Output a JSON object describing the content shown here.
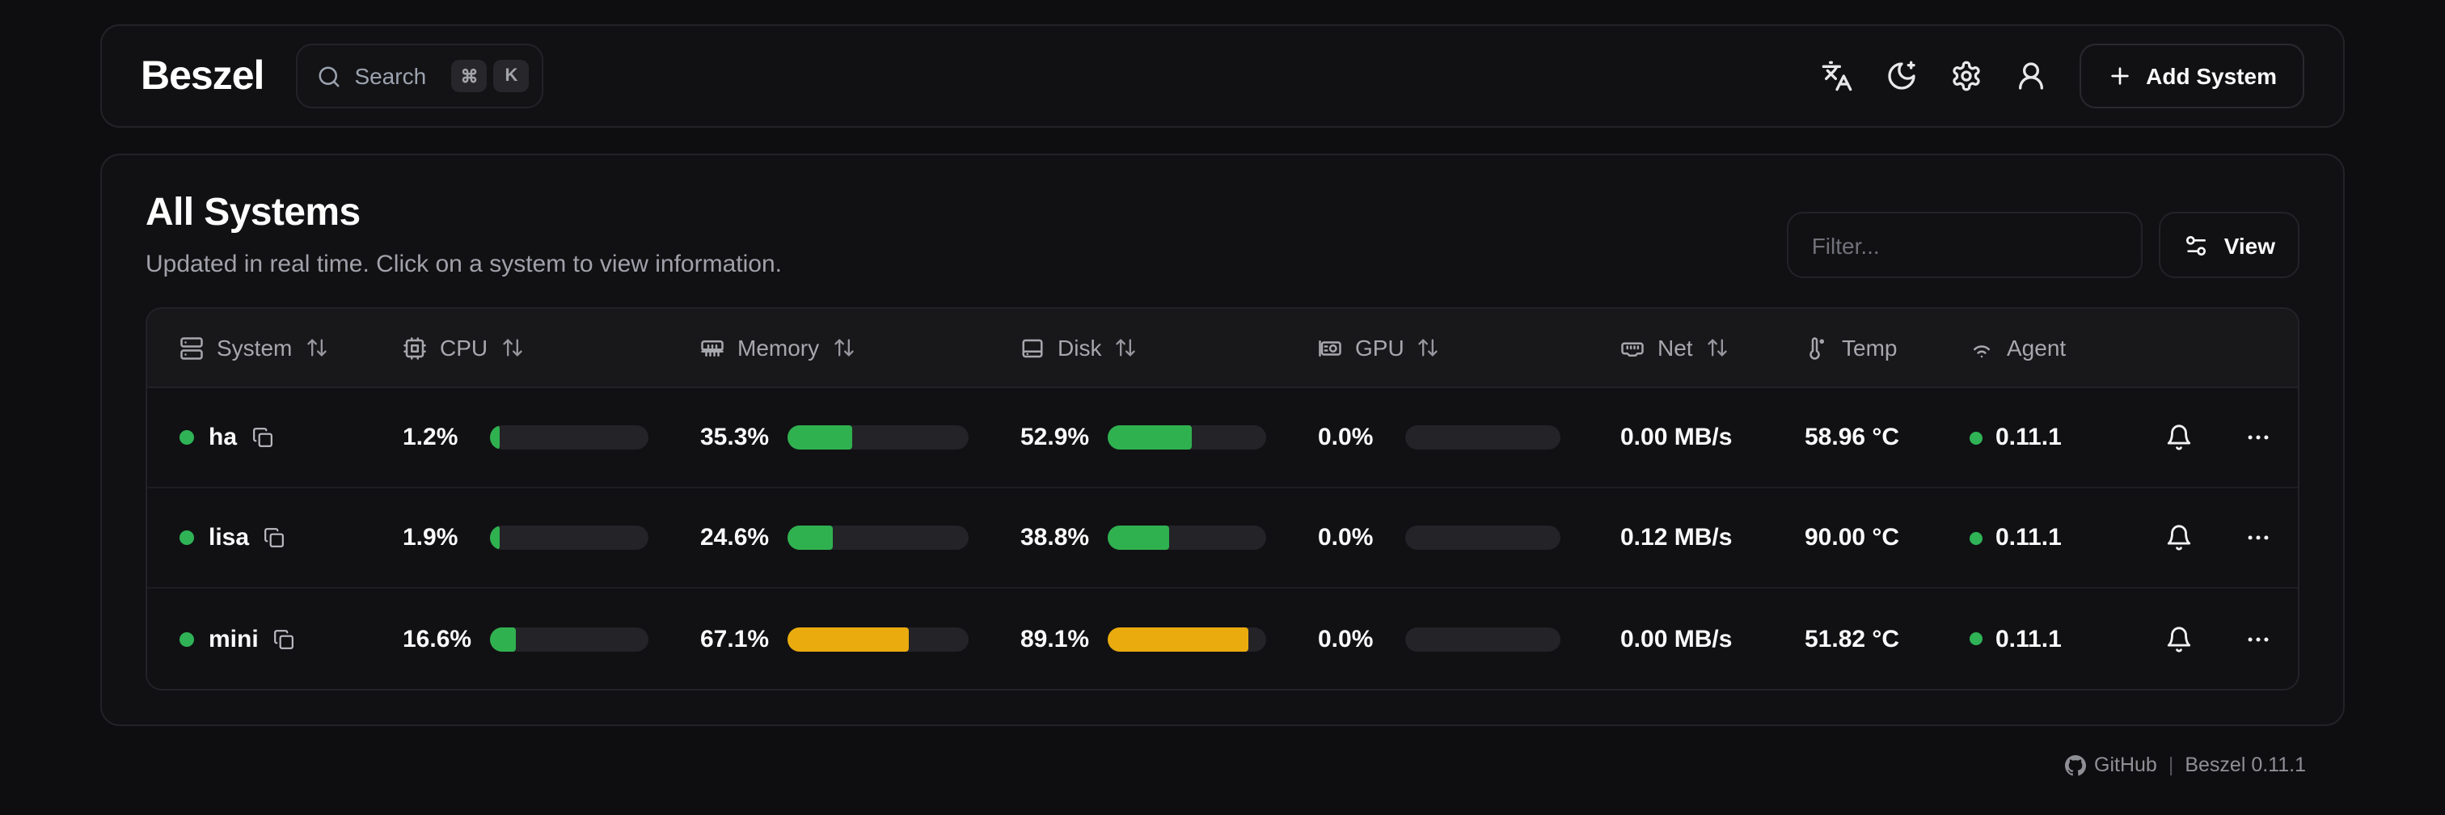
{
  "nav": {
    "brand": "Beszel",
    "search": {
      "placeholder": "Search",
      "kbd_cmd": "⌘",
      "kbd_k": "K"
    },
    "add_system_label": "Add System"
  },
  "main": {
    "title": "All Systems",
    "subtitle": "Updated in real time. Click on a system to view information.",
    "filter_placeholder": "Filter...",
    "view_label": "View"
  },
  "table": {
    "headers": {
      "system": "System",
      "cpu": "CPU",
      "memory": "Memory",
      "disk": "Disk",
      "gpu": "GPU",
      "net": "Net",
      "temp": "Temp",
      "agent": "Agent"
    },
    "rows": [
      {
        "name": "ha",
        "status": "up",
        "cpu": {
          "label": "1.2%",
          "pct": 1.2,
          "level": "green"
        },
        "memory": {
          "label": "35.3%",
          "pct": 35.3,
          "level": "green"
        },
        "disk": {
          "label": "52.9%",
          "pct": 52.9,
          "level": "green"
        },
        "gpu": {
          "label": "0.0%",
          "pct": 0,
          "level": "green"
        },
        "net": "0.00 MB/s",
        "temp": "58.96 °C",
        "agent": "0.11.1"
      },
      {
        "name": "lisa",
        "status": "up",
        "cpu": {
          "label": "1.9%",
          "pct": 1.9,
          "level": "green"
        },
        "memory": {
          "label": "24.6%",
          "pct": 24.6,
          "level": "green"
        },
        "disk": {
          "label": "38.8%",
          "pct": 38.8,
          "level": "green"
        },
        "gpu": {
          "label": "0.0%",
          "pct": 0,
          "level": "green"
        },
        "net": "0.12 MB/s",
        "temp": "90.00 °C",
        "agent": "0.11.1"
      },
      {
        "name": "mini",
        "status": "up",
        "cpu": {
          "label": "16.6%",
          "pct": 16.6,
          "level": "green"
        },
        "memory": {
          "label": "67.1%",
          "pct": 67.1,
          "level": "amber"
        },
        "disk": {
          "label": "89.1%",
          "pct": 89.1,
          "level": "amber"
        },
        "gpu": {
          "label": "0.0%",
          "pct": 0,
          "level": "green"
        },
        "net": "0.00 MB/s",
        "temp": "51.82 °C",
        "agent": "0.11.1"
      }
    ]
  },
  "footer": {
    "github_label": "GitHub",
    "separator": "|",
    "version": "Beszel 0.11.1"
  },
  "colors": {
    "green": "#30b150",
    "amber": "#eaab0e",
    "status_dot": "#2fb356"
  }
}
